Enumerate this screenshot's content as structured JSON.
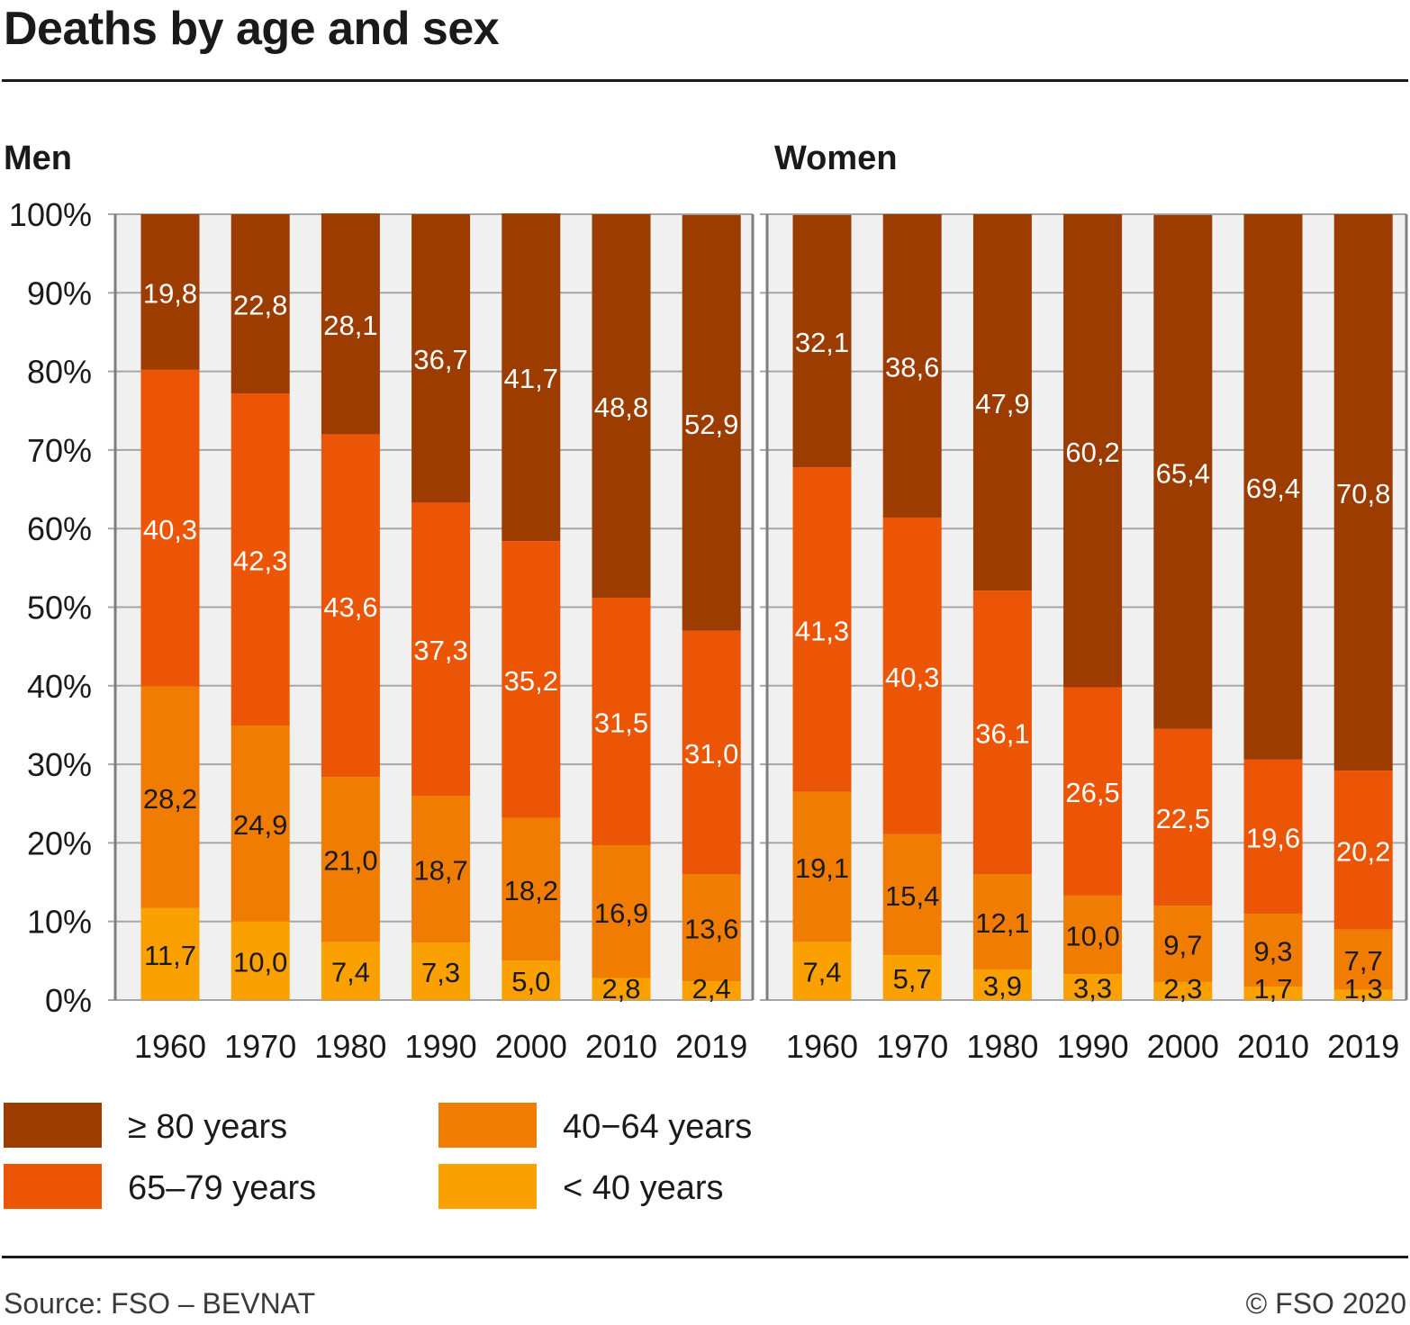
{
  "chart_data": {
    "type": "bar",
    "stacked": true,
    "title": "Deaths by age and sex",
    "ylim": [
      0,
      100
    ],
    "y_tick_labels": [
      "0%",
      "10%",
      "20%",
      "30%",
      "40%",
      "50%",
      "60%",
      "70%",
      "80%",
      "90%",
      "100%"
    ],
    "grid": true,
    "legend_position": "bottom-left",
    "categories": [
      "1960",
      "1970",
      "1980",
      "1990",
      "2000",
      "2010",
      "2019"
    ],
    "series_info": [
      {
        "name": "≥ 80 years",
        "color": "#9c3c00"
      },
      {
        "name": "65–79 years",
        "color": "#eb5505"
      },
      {
        "name": "40−64 years",
        "color": "#f07d02"
      },
      {
        "name": "< 40 years",
        "color": "#faa001"
      }
    ],
    "panels": [
      {
        "title": "Men",
        "series": [
          {
            "name": "< 40 years",
            "values": [
              11.7,
              10.0,
              7.4,
              7.3,
              5.0,
              2.8,
              2.4
            ]
          },
          {
            "name": "40−64 years",
            "values": [
              28.2,
              24.9,
              21.0,
              18.7,
              18.2,
              16.9,
              13.6
            ]
          },
          {
            "name": "65–79 years",
            "values": [
              40.3,
              42.3,
              43.6,
              37.3,
              35.2,
              31.5,
              31.0
            ]
          },
          {
            "name": "≥ 80 years",
            "values": [
              19.8,
              22.8,
              28.1,
              36.7,
              41.7,
              48.8,
              52.9
            ]
          }
        ]
      },
      {
        "title": "Women",
        "series": [
          {
            "name": "< 40 years",
            "values": [
              7.4,
              5.7,
              3.9,
              3.3,
              2.3,
              1.7,
              1.3
            ]
          },
          {
            "name": "40−64 years",
            "values": [
              19.1,
              15.4,
              12.1,
              10.0,
              9.7,
              9.3,
              7.7
            ]
          },
          {
            "name": "65–79 years",
            "values": [
              41.3,
              40.3,
              36.1,
              26.5,
              22.5,
              19.6,
              20.2
            ]
          },
          {
            "name": "≥ 80 years",
            "values": [
              32.1,
              38.6,
              47.9,
              60.2,
              65.4,
              69.4,
              70.8
            ]
          }
        ]
      }
    ]
  },
  "footer": {
    "source": "Source: FSO – BEVNAT",
    "copyright": "© FSO 2020"
  }
}
